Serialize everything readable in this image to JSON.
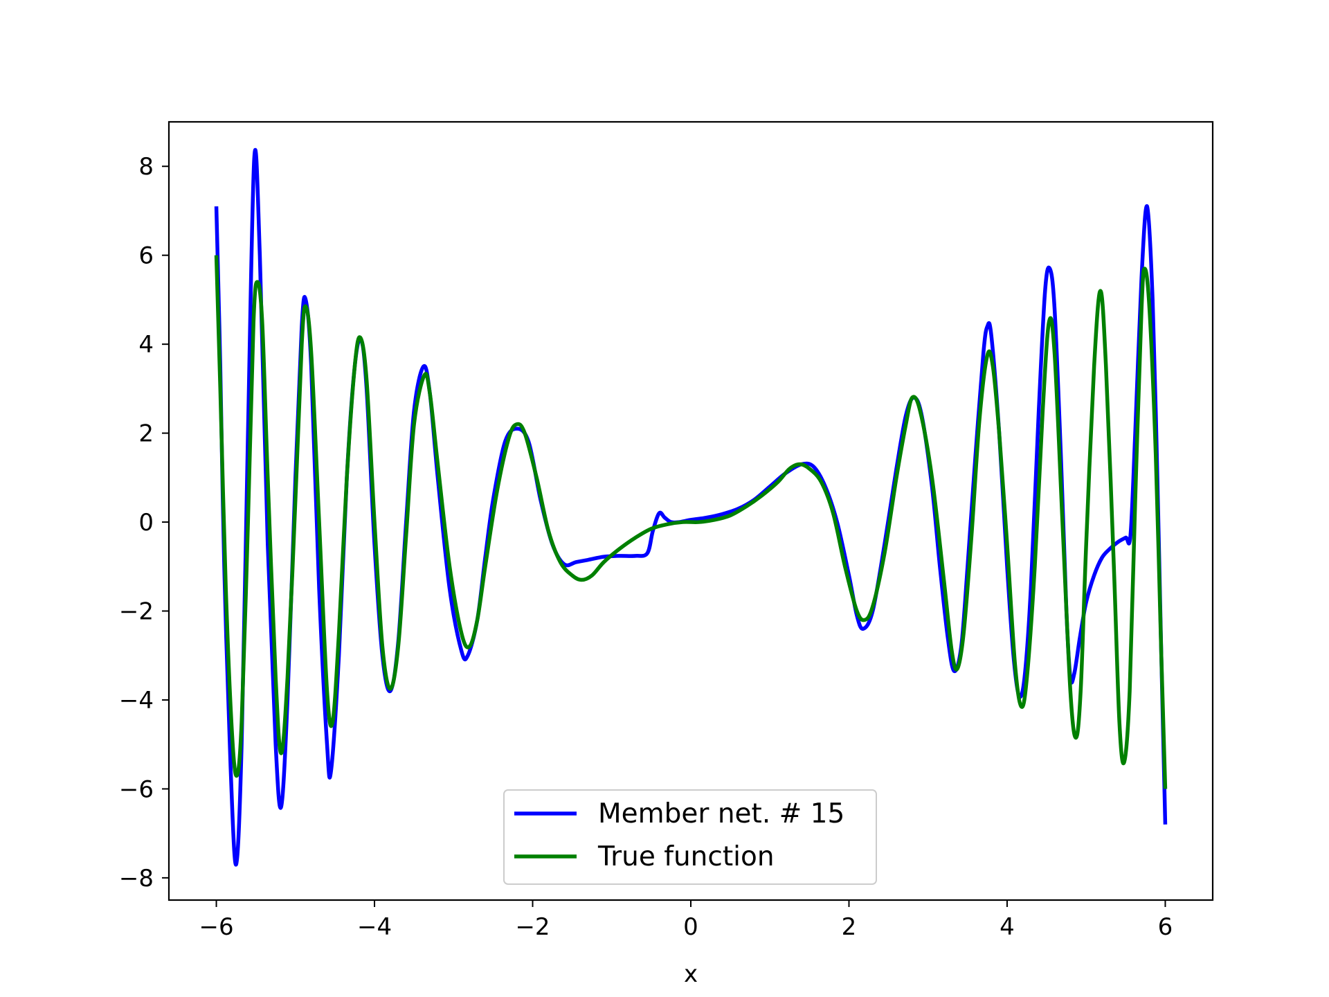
{
  "chart_data": {
    "type": "line",
    "title": "",
    "xlabel": "x",
    "ylabel": "",
    "xlim": [
      -6.6,
      6.6
    ],
    "ylim": [
      -8.5,
      9.0
    ],
    "x_ticks": [
      -6,
      -4,
      -2,
      0,
      2,
      4,
      6
    ],
    "y_ticks": [
      -8,
      -6,
      -4,
      -2,
      0,
      2,
      4,
      6,
      8
    ],
    "x_tick_labels": [
      "−6",
      "−4",
      "−2",
      "0",
      "2",
      "4",
      "6"
    ],
    "y_tick_labels": [
      "−8",
      "−6",
      "−4",
      "−2",
      "0",
      "2",
      "4",
      "6",
      "8"
    ],
    "grid": false,
    "legend_position": "lower-center",
    "series": [
      {
        "name": "Member net. # 15",
        "color": "#0000ff",
        "points": [
          [
            -6.0,
            7.1
          ],
          [
            -5.95,
            3.5
          ],
          [
            -5.9,
            -1.0
          ],
          [
            -5.82,
            -5.5
          ],
          [
            -5.75,
            -7.7
          ],
          [
            -5.68,
            -5.0
          ],
          [
            -5.6,
            2.0
          ],
          [
            -5.52,
            8.2
          ],
          [
            -5.45,
            6.0
          ],
          [
            -5.35,
            -0.5
          ],
          [
            -5.25,
            -5.0
          ],
          [
            -5.18,
            -6.4
          ],
          [
            -5.1,
            -4.0
          ],
          [
            -5.0,
            1.0
          ],
          [
            -4.92,
            4.4
          ],
          [
            -4.87,
            5.0
          ],
          [
            -4.8,
            3.5
          ],
          [
            -4.7,
            -1.5
          ],
          [
            -4.6,
            -5.0
          ],
          [
            -4.55,
            -5.6
          ],
          [
            -4.45,
            -3.0
          ],
          [
            -4.35,
            1.0
          ],
          [
            -4.25,
            3.5
          ],
          [
            -4.17,
            4.1
          ],
          [
            -4.1,
            3.0
          ],
          [
            -4.0,
            -0.5
          ],
          [
            -3.9,
            -3.0
          ],
          [
            -3.8,
            -3.8
          ],
          [
            -3.7,
            -2.7
          ],
          [
            -3.6,
            0.0
          ],
          [
            -3.5,
            2.5
          ],
          [
            -3.38,
            3.5
          ],
          [
            -3.3,
            2.9
          ],
          [
            -3.2,
            1.0
          ],
          [
            -3.05,
            -1.5
          ],
          [
            -2.9,
            -2.9
          ],
          [
            -2.82,
            -3.0
          ],
          [
            -2.7,
            -2.2
          ],
          [
            -2.6,
            -0.8
          ],
          [
            -2.5,
            0.5
          ],
          [
            -2.35,
            1.8
          ],
          [
            -2.2,
            2.1
          ],
          [
            -2.05,
            1.8
          ],
          [
            -1.9,
            0.5
          ],
          [
            -1.75,
            -0.5
          ],
          [
            -1.6,
            -0.95
          ],
          [
            -1.45,
            -0.9
          ],
          [
            -1.3,
            -0.85
          ],
          [
            -1.1,
            -0.78
          ],
          [
            -0.9,
            -0.76
          ],
          [
            -0.7,
            -0.76
          ],
          [
            -0.55,
            -0.7
          ],
          [
            -0.48,
            -0.2
          ],
          [
            -0.4,
            0.2
          ],
          [
            -0.33,
            0.1
          ],
          [
            -0.25,
            0.0
          ],
          [
            -0.15,
            0.0
          ],
          [
            0.0,
            0.05
          ],
          [
            0.2,
            0.1
          ],
          [
            0.4,
            0.18
          ],
          [
            0.6,
            0.3
          ],
          [
            0.8,
            0.5
          ],
          [
            1.0,
            0.8
          ],
          [
            1.2,
            1.1
          ],
          [
            1.4,
            1.3
          ],
          [
            1.55,
            1.25
          ],
          [
            1.7,
            0.8
          ],
          [
            1.85,
            0.0
          ],
          [
            2.0,
            -1.2
          ],
          [
            2.1,
            -2.1
          ],
          [
            2.18,
            -2.4
          ],
          [
            2.3,
            -2.0
          ],
          [
            2.45,
            -0.5
          ],
          [
            2.6,
            1.2
          ],
          [
            2.72,
            2.4
          ],
          [
            2.82,
            2.8
          ],
          [
            2.92,
            2.4
          ],
          [
            3.05,
            0.8
          ],
          [
            3.15,
            -1.0
          ],
          [
            3.25,
            -2.6
          ],
          [
            3.33,
            -3.35
          ],
          [
            3.42,
            -2.8
          ],
          [
            3.5,
            -1.0
          ],
          [
            3.6,
            1.5
          ],
          [
            3.7,
            3.8
          ],
          [
            3.75,
            4.4
          ],
          [
            3.8,
            4.2
          ],
          [
            3.9,
            2.0
          ],
          [
            4.0,
            -1.0
          ],
          [
            4.08,
            -3.0
          ],
          [
            4.15,
            -3.9
          ],
          [
            4.22,
            -3.5
          ],
          [
            4.3,
            -1.5
          ],
          [
            4.4,
            2.5
          ],
          [
            4.48,
            5.2
          ],
          [
            4.54,
            5.7
          ],
          [
            4.6,
            4.8
          ],
          [
            4.68,
            1.5
          ],
          [
            4.75,
            -2.0
          ],
          [
            4.8,
            -3.5
          ],
          [
            4.85,
            -3.4
          ],
          [
            4.92,
            -2.6
          ],
          [
            5.0,
            -1.8
          ],
          [
            5.1,
            -1.2
          ],
          [
            5.2,
            -0.8
          ],
          [
            5.3,
            -0.6
          ],
          [
            5.4,
            -0.45
          ],
          [
            5.5,
            -0.35
          ],
          [
            5.56,
            -0.3
          ],
          [
            5.62,
            2.0
          ],
          [
            5.7,
            5.5
          ],
          [
            5.77,
            7.1
          ],
          [
            5.84,
            5.0
          ],
          [
            5.9,
            1.0
          ],
          [
            5.95,
            -3.0
          ],
          [
            6.0,
            -6.8
          ]
        ]
      },
      {
        "name": "True function",
        "color": "#008000",
        "points": [
          [
            -6.0,
            6.0
          ],
          [
            -5.95,
            3.0
          ],
          [
            -5.88,
            -1.5
          ],
          [
            -5.8,
            -4.8
          ],
          [
            -5.74,
            -5.7
          ],
          [
            -5.68,
            -4.5
          ],
          [
            -5.6,
            0.0
          ],
          [
            -5.53,
            4.5
          ],
          [
            -5.48,
            5.4
          ],
          [
            -5.42,
            4.5
          ],
          [
            -5.35,
            1.0
          ],
          [
            -5.25,
            -3.5
          ],
          [
            -5.18,
            -5.2
          ],
          [
            -5.1,
            -3.5
          ],
          [
            -5.0,
            0.5
          ],
          [
            -4.92,
            4.0
          ],
          [
            -4.87,
            4.85
          ],
          [
            -4.8,
            3.8
          ],
          [
            -4.7,
            0.0
          ],
          [
            -4.6,
            -3.8
          ],
          [
            -4.53,
            -4.5
          ],
          [
            -4.45,
            -2.5
          ],
          [
            -4.35,
            1.0
          ],
          [
            -4.25,
            3.5
          ],
          [
            -4.18,
            4.15
          ],
          [
            -4.1,
            3.2
          ],
          [
            -4.0,
            0.0
          ],
          [
            -3.9,
            -2.8
          ],
          [
            -3.8,
            -3.75
          ],
          [
            -3.7,
            -2.8
          ],
          [
            -3.6,
            -0.3
          ],
          [
            -3.5,
            2.2
          ],
          [
            -3.37,
            3.3
          ],
          [
            -3.3,
            2.9
          ],
          [
            -3.2,
            1.3
          ],
          [
            -3.05,
            -1.0
          ],
          [
            -2.9,
            -2.5
          ],
          [
            -2.8,
            -2.8
          ],
          [
            -2.7,
            -2.2
          ],
          [
            -2.6,
            -1.0
          ],
          [
            -2.45,
            0.7
          ],
          [
            -2.3,
            1.9
          ],
          [
            -2.2,
            2.2
          ],
          [
            -2.1,
            2.0
          ],
          [
            -1.95,
            1.0
          ],
          [
            -1.8,
            -0.2
          ],
          [
            -1.65,
            -0.9
          ],
          [
            -1.5,
            -1.2
          ],
          [
            -1.38,
            -1.3
          ],
          [
            -1.25,
            -1.2
          ],
          [
            -1.1,
            -0.9
          ],
          [
            -0.9,
            -0.6
          ],
          [
            -0.7,
            -0.35
          ],
          [
            -0.5,
            -0.15
          ],
          [
            -0.3,
            -0.05
          ],
          [
            -0.1,
            0.0
          ],
          [
            0.1,
            0.0
          ],
          [
            0.3,
            0.05
          ],
          [
            0.5,
            0.15
          ],
          [
            0.7,
            0.35
          ],
          [
            0.9,
            0.6
          ],
          [
            1.1,
            0.9
          ],
          [
            1.25,
            1.2
          ],
          [
            1.38,
            1.3
          ],
          [
            1.5,
            1.2
          ],
          [
            1.65,
            0.9
          ],
          [
            1.8,
            0.2
          ],
          [
            1.95,
            -1.0
          ],
          [
            2.1,
            -2.0
          ],
          [
            2.2,
            -2.2
          ],
          [
            2.3,
            -1.9
          ],
          [
            2.45,
            -0.7
          ],
          [
            2.6,
            1.0
          ],
          [
            2.72,
            2.2
          ],
          [
            2.8,
            2.8
          ],
          [
            2.9,
            2.5
          ],
          [
            3.05,
            1.0
          ],
          [
            3.2,
            -1.3
          ],
          [
            3.3,
            -2.9
          ],
          [
            3.37,
            -3.3
          ],
          [
            3.45,
            -2.5
          ],
          [
            3.55,
            -0.3
          ],
          [
            3.65,
            2.3
          ],
          [
            3.75,
            3.75
          ],
          [
            3.82,
            3.5
          ],
          [
            3.9,
            2.0
          ],
          [
            4.0,
            -0.5
          ],
          [
            4.1,
            -3.2
          ],
          [
            4.18,
            -4.15
          ],
          [
            4.25,
            -3.5
          ],
          [
            4.35,
            -1.0
          ],
          [
            4.45,
            2.5
          ],
          [
            4.53,
            4.5
          ],
          [
            4.6,
            3.8
          ],
          [
            4.7,
            0.0
          ],
          [
            4.8,
            -3.8
          ],
          [
            4.87,
            -4.85
          ],
          [
            4.93,
            -3.8
          ],
          [
            5.0,
            -0.5
          ],
          [
            5.1,
            3.5
          ],
          [
            5.18,
            5.2
          ],
          [
            5.25,
            3.5
          ],
          [
            5.35,
            -1.0
          ],
          [
            5.42,
            -4.5
          ],
          [
            5.48,
            -5.4
          ],
          [
            5.55,
            -3.8
          ],
          [
            5.62,
            0.5
          ],
          [
            5.7,
            4.8
          ],
          [
            5.74,
            5.7
          ],
          [
            5.8,
            4.8
          ],
          [
            5.88,
            1.5
          ],
          [
            5.95,
            -3.0
          ],
          [
            6.0,
            -6.0
          ]
        ]
      }
    ]
  }
}
